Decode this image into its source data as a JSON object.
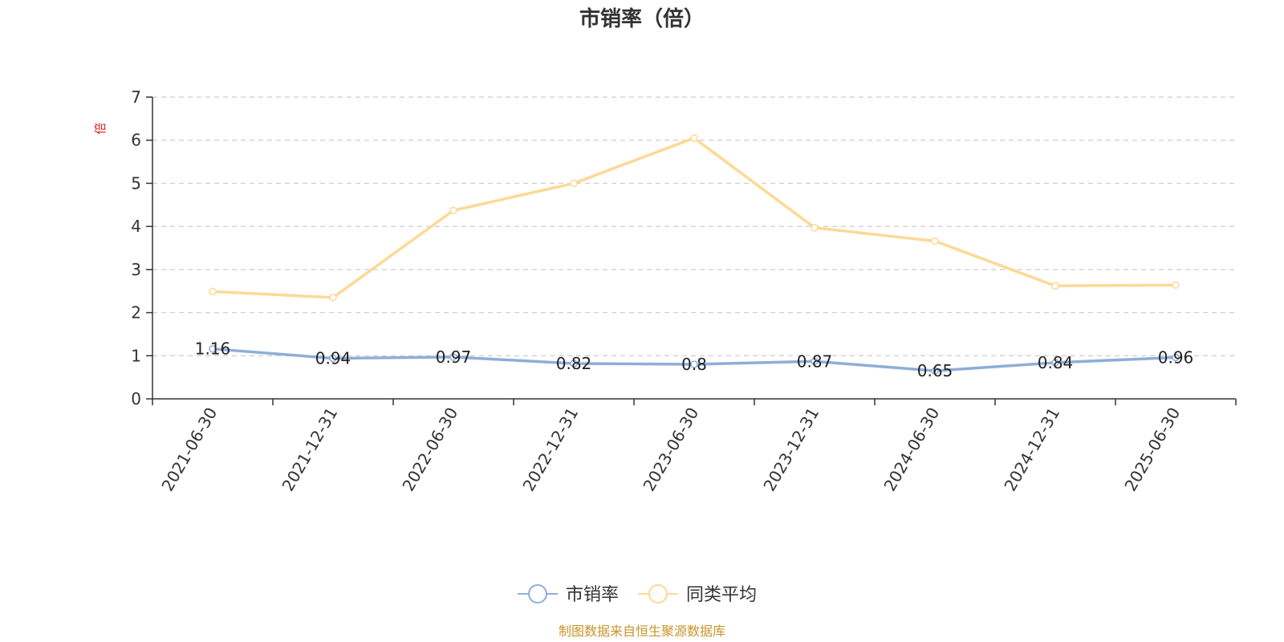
{
  "chart_data": {
    "type": "line",
    "title": "市销率（倍）",
    "y_unit": "倍",
    "categories": [
      "2021-06-30",
      "2021-12-31",
      "2022-06-30",
      "2022-12-31",
      "2023-06-30",
      "2023-12-31",
      "2024-06-30",
      "2024-12-31",
      "2025-06-30"
    ],
    "ylim": [
      0,
      7
    ],
    "yticks": [
      0,
      1,
      2,
      3,
      4,
      5,
      6,
      7
    ],
    "grid": true,
    "legend_position": "bottom",
    "series": [
      {
        "name": "市销率",
        "color": "#8eaed8",
        "values": [
          1.16,
          0.94,
          0.97,
          0.82,
          0.8,
          0.87,
          0.65,
          0.84,
          0.96
        ],
        "labels": [
          "1.16",
          "0.94",
          "0.97",
          "0.82",
          "0.8",
          "0.87",
          "0.65",
          "0.84",
          "0.96"
        ]
      },
      {
        "name": "同类平均",
        "color": "#fcd995",
        "values": [
          2.49,
          2.35,
          4.37,
          5.0,
          6.05,
          3.97,
          3.66,
          2.62,
          2.64
        ]
      }
    ]
  },
  "footer": {
    "source": "制图数据来自恒生聚源数据库"
  }
}
